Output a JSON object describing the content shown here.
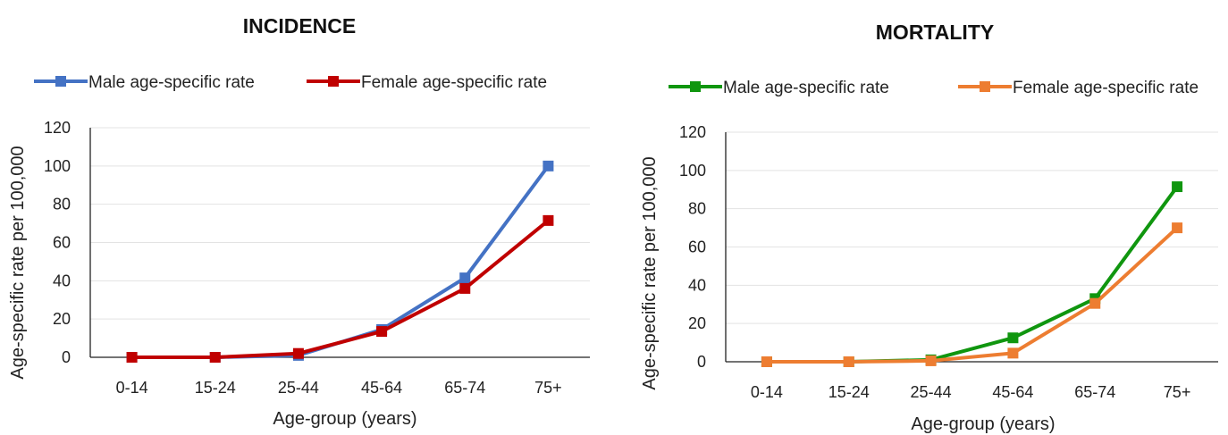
{
  "chart_data": [
    {
      "type": "line",
      "title": "INCIDENCE",
      "xlabel": "Age-group (years)",
      "ylabel": "Age-specific rate per 100,000",
      "categories": [
        "0-14",
        "15-24",
        "25-44",
        "45-64",
        "65-74",
        "75+"
      ],
      "ylim": [
        0,
        120
      ],
      "yticks": [
        "0",
        "20",
        "40",
        "60",
        "80",
        "100",
        "120"
      ],
      "grid": true,
      "legend_position": "top",
      "series": [
        {
          "name": "Male age-specific rate",
          "color": "#4472C4",
          "values": [
            0,
            0,
            1,
            14.5,
            41.5,
            100
          ]
        },
        {
          "name": "Female age-specific rate",
          "color": "#C00000",
          "values": [
            0,
            0,
            2,
            13.5,
            36,
            71.5
          ]
        }
      ]
    },
    {
      "type": "line",
      "title": "MORTALITY",
      "xlabel": "Age-group (years)",
      "ylabel": "Age-specific rate per 100,000",
      "categories": [
        "0-14",
        "15-24",
        "25-44",
        "45-64",
        "65-74",
        "75+"
      ],
      "ylim": [
        0,
        120
      ],
      "yticks": [
        "0",
        "20",
        "40",
        "60",
        "80",
        "100",
        "120"
      ],
      "grid": true,
      "legend_position": "top",
      "series": [
        {
          "name": "Male age-specific rate",
          "color": "#10960F",
          "values": [
            0,
            0,
            1,
            12.5,
            33,
            91.5
          ]
        },
        {
          "name": "Female age-specific rate",
          "color": "#ED7D31",
          "values": [
            0,
            0,
            0.5,
            4.5,
            30.5,
            70
          ]
        }
      ]
    }
  ]
}
